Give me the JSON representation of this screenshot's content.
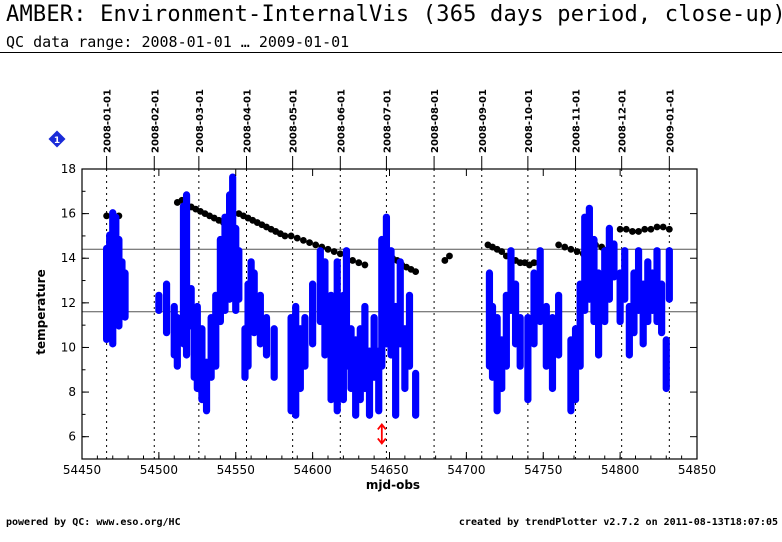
{
  "header": {
    "title": "AMBER: Environment-InternalVis (365 days period, close-up)",
    "subtitle": "QC data range: 2008-01-01 … 2009-01-01"
  },
  "footer": {
    "left": "powered by QC: www.eso.org/HC",
    "right": "created by trendPlotter v2.7.2 on 2011-08-13T18:07:05"
  },
  "badge": {
    "label": "1",
    "color": "#1a2bd8",
    "icon": "diamond-icon"
  },
  "chart_data": {
    "type": "scatter",
    "title": "",
    "xlabel": "mjd-obs",
    "ylabel": "temperature",
    "xlim": [
      54450,
      54850
    ],
    "ylim": [
      5,
      18
    ],
    "xticks": [
      54450,
      54500,
      54550,
      54600,
      54650,
      54700,
      54750,
      54800,
      54850
    ],
    "yticks": [
      6,
      8,
      10,
      12,
      14,
      16,
      18
    ],
    "reference_lines": [
      14.4,
      11.6
    ],
    "outlier_marker": {
      "x": 54645,
      "y": 6.1,
      "color": "#ff0000"
    },
    "date_ticks": [
      {
        "label": "2008-01-01",
        "x": 54466
      },
      {
        "label": "2008-02-01",
        "x": 54497
      },
      {
        "label": "2008-03-01",
        "x": 54526
      },
      {
        "label": "2008-04-01",
        "x": 54557
      },
      {
        "label": "2008-05-01",
        "x": 54587
      },
      {
        "label": "2008-06-01",
        "x": 54618
      },
      {
        "label": "2008-07-01",
        "x": 54648
      },
      {
        "label": "2008-08-01",
        "x": 54679
      },
      {
        "label": "2008-09-01",
        "x": 54710
      },
      {
        "label": "2008-10-01",
        "x": 54740
      },
      {
        "label": "2008-11-01",
        "x": 54771
      },
      {
        "label": "2008-12-01",
        "x": 54801
      },
      {
        "label": "2009-01-01",
        "x": 54832
      }
    ],
    "series": [
      {
        "color": "#000000",
        "points": [
          [
            54466,
            15.9
          ],
          [
            54470,
            16.0
          ],
          [
            54474,
            15.9
          ],
          [
            54512,
            16.5
          ],
          [
            54515,
            16.6
          ],
          [
            54518,
            16.4
          ],
          [
            54521,
            16.3
          ],
          [
            54524,
            16.2
          ],
          [
            54527,
            16.1
          ],
          [
            54530,
            16.0
          ],
          [
            54533,
            15.9
          ],
          [
            54536,
            15.8
          ],
          [
            54539,
            15.7
          ],
          [
            54542,
            15.6
          ],
          [
            54545,
            15.7
          ],
          [
            54548,
            15.8
          ],
          [
            54552,
            16.0
          ],
          [
            54555,
            15.9
          ],
          [
            54558,
            15.8
          ],
          [
            54561,
            15.7
          ],
          [
            54564,
            15.6
          ],
          [
            54567,
            15.5
          ],
          [
            54570,
            15.4
          ],
          [
            54573,
            15.3
          ],
          [
            54576,
            15.2
          ],
          [
            54579,
            15.1
          ],
          [
            54582,
            15.0
          ],
          [
            54586,
            15.0
          ],
          [
            54590,
            14.9
          ],
          [
            54594,
            14.8
          ],
          [
            54598,
            14.7
          ],
          [
            54602,
            14.6
          ],
          [
            54606,
            14.5
          ],
          [
            54610,
            14.4
          ],
          [
            54614,
            14.3
          ],
          [
            54618,
            14.2
          ],
          [
            54622,
            14.1
          ],
          [
            54626,
            13.9
          ],
          [
            54630,
            13.8
          ],
          [
            54634,
            13.7
          ],
          [
            54652,
            14.0
          ],
          [
            54655,
            13.9
          ],
          [
            54658,
            13.7
          ],
          [
            54661,
            13.6
          ],
          [
            54664,
            13.5
          ],
          [
            54667,
            13.4
          ],
          [
            54686,
            13.9
          ],
          [
            54689,
            14.1
          ],
          [
            54714,
            14.6
          ],
          [
            54717,
            14.5
          ],
          [
            54720,
            14.4
          ],
          [
            54723,
            14.3
          ],
          [
            54726,
            14.1
          ],
          [
            54729,
            14.0
          ],
          [
            54732,
            13.9
          ],
          [
            54735,
            13.8
          ],
          [
            54738,
            13.8
          ],
          [
            54741,
            13.7
          ],
          [
            54744,
            13.8
          ],
          [
            54747,
            13.8
          ],
          [
            54760,
            14.6
          ],
          [
            54764,
            14.5
          ],
          [
            54768,
            14.4
          ],
          [
            54772,
            14.3
          ],
          [
            54776,
            14.2
          ],
          [
            54780,
            14.1
          ],
          [
            54784,
            14.6
          ],
          [
            54788,
            14.5
          ],
          [
            54792,
            14.4
          ],
          [
            54796,
            14.3
          ],
          [
            54800,
            15.3
          ],
          [
            54804,
            15.3
          ],
          [
            54808,
            15.2
          ],
          [
            54812,
            15.2
          ],
          [
            54816,
            15.3
          ],
          [
            54820,
            15.3
          ],
          [
            54824,
            15.4
          ],
          [
            54828,
            15.4
          ],
          [
            54832,
            15.3
          ]
        ]
      },
      {
        "color": "#0000ff",
        "segments": [
          [
            54466,
            10.2,
            14.6
          ],
          [
            54468,
            10.5,
            15.2
          ],
          [
            54470,
            10.0,
            16.2
          ],
          [
            54472,
            11.0,
            16.0
          ],
          [
            54474,
            10.8,
            15.0
          ],
          [
            54476,
            11.5,
            14.0
          ],
          [
            54478,
            11.2,
            13.5
          ],
          [
            54500,
            11.5,
            12.5
          ],
          [
            54505,
            10.5,
            13.0
          ],
          [
            54510,
            9.5,
            12.0
          ],
          [
            54512,
            9.0,
            11.5
          ],
          [
            54516,
            10.0,
            16.5
          ],
          [
            54518,
            9.5,
            17.0
          ],
          [
            54521,
            10.8,
            12.8
          ],
          [
            54523,
            8.5,
            11.5
          ],
          [
            54525,
            8.0,
            12.0
          ],
          [
            54528,
            7.5,
            11.0
          ],
          [
            54531,
            7.0,
            9.5
          ],
          [
            54534,
            8.5,
            11.5
          ],
          [
            54537,
            9.0,
            12.5
          ],
          [
            54540,
            11.0,
            15.0
          ],
          [
            54543,
            11.5,
            16.0
          ],
          [
            54546,
            12.0,
            17.0
          ],
          [
            54548,
            12.5,
            17.8
          ],
          [
            54550,
            11.5,
            15.5
          ],
          [
            54552,
            12.0,
            14.5
          ],
          [
            54556,
            8.5,
            11.0
          ],
          [
            54558,
            9.0,
            13.0
          ],
          [
            54560,
            11.0,
            14.0
          ],
          [
            54562,
            10.5,
            13.5
          ],
          [
            54566,
            10.0,
            12.5
          ],
          [
            54570,
            9.5,
            11.5
          ],
          [
            54575,
            8.5,
            11.0
          ],
          [
            54586,
            7.0,
            11.5
          ],
          [
            54589,
            6.8,
            12.0
          ],
          [
            54592,
            8.0,
            11.0
          ],
          [
            54595,
            9.0,
            11.5
          ],
          [
            54600,
            10.0,
            13.0
          ],
          [
            54605,
            11.0,
            14.5
          ],
          [
            54608,
            9.5,
            14.0
          ],
          [
            54612,
            7.5,
            12.5
          ],
          [
            54616,
            7.0,
            14.0
          ],
          [
            54620,
            7.5,
            12.5
          ],
          [
            54622,
            9.0,
            14.5
          ],
          [
            54625,
            8.0,
            11.0
          ],
          [
            54628,
            6.8,
            10.5
          ],
          [
            54631,
            7.5,
            11.0
          ],
          [
            54634,
            8.0,
            12.0
          ],
          [
            54637,
            6.8,
            10.0
          ],
          [
            54640,
            8.5,
            11.5
          ],
          [
            54643,
            7.0,
            10.0
          ],
          [
            54645,
            9.0,
            15.0
          ],
          [
            54648,
            10.0,
            16.0
          ],
          [
            54651,
            9.5,
            14.5
          ],
          [
            54654,
            6.8,
            12.0
          ],
          [
            54657,
            10.0,
            14.0
          ],
          [
            54660,
            8.0,
            11.0
          ],
          [
            54663,
            9.0,
            12.5
          ],
          [
            54667,
            6.8,
            9.0
          ],
          [
            54715,
            9.0,
            13.5
          ],
          [
            54717,
            8.5,
            12.0
          ],
          [
            54720,
            7.0,
            11.5
          ],
          [
            54723,
            8.0,
            10.5
          ],
          [
            54726,
            9.0,
            12.5
          ],
          [
            54729,
            11.5,
            14.5
          ],
          [
            54732,
            10.0,
            13.0
          ],
          [
            54735,
            9.0,
            11.5
          ],
          [
            54740,
            7.5,
            11.5
          ],
          [
            54744,
            10.0,
            13.5
          ],
          [
            54748,
            11.0,
            14.5
          ],
          [
            54752,
            9.0,
            12.0
          ],
          [
            54756,
            8.0,
            11.5
          ],
          [
            54760,
            9.5,
            12.5
          ],
          [
            54768,
            7.0,
            10.5
          ],
          [
            54771,
            7.5,
            11.0
          ],
          [
            54774,
            9.0,
            13.0
          ],
          [
            54777,
            11.5,
            16.0
          ],
          [
            54780,
            12.0,
            16.4
          ],
          [
            54783,
            11.0,
            15.0
          ],
          [
            54786,
            9.5,
            13.5
          ],
          [
            54790,
            11.0,
            14.5
          ],
          [
            54793,
            12.0,
            15.5
          ],
          [
            54796,
            13.0,
            14.8
          ],
          [
            54800,
            11.0,
            13.5
          ],
          [
            54803,
            12.0,
            14.5
          ],
          [
            54806,
            9.5,
            12.0
          ],
          [
            54809,
            10.5,
            13.5
          ],
          [
            54812,
            11.5,
            14.5
          ],
          [
            54815,
            10.0,
            13.0
          ],
          [
            54818,
            11.0,
            14.0
          ],
          [
            54821,
            11.5,
            13.5
          ],
          [
            54824,
            11.0,
            14.5
          ],
          [
            54827,
            10.5,
            13.0
          ],
          [
            54830,
            8.0,
            10.5
          ],
          [
            54832,
            12.0,
            14.5
          ]
        ]
      }
    ]
  }
}
